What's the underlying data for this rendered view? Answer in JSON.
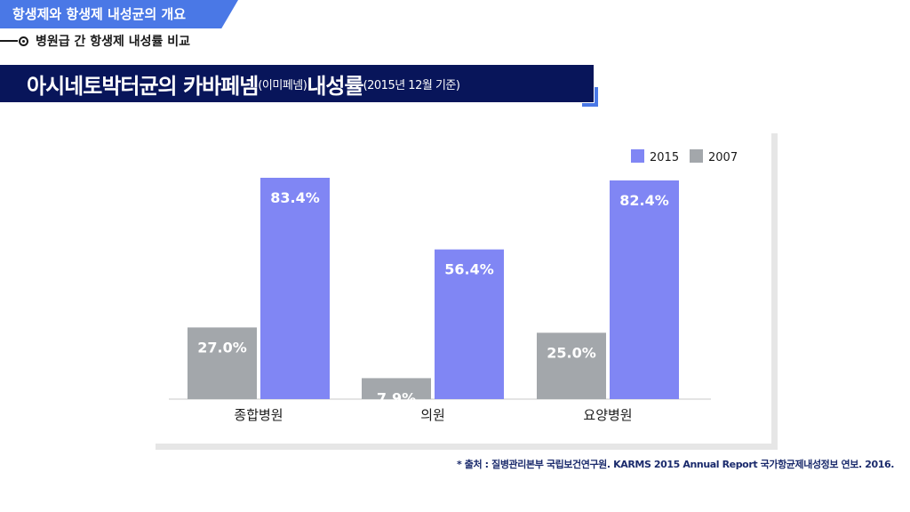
{
  "section_tag": "항생제와 항생제 내성균의 개요",
  "subtitle": "병원급 간 항생제 내성률 비교",
  "title": {
    "main": "아시네토박터균의 카바페넴",
    "paren": "(이미페넴)",
    "mid": " 내성률",
    "date_note": "(2015년 12월 기준)"
  },
  "colors": {
    "series_2015": "#8086f4",
    "series_2007": "#a3a7ab",
    "title_bg": "#08155a",
    "accent": "#4a78e6"
  },
  "chart_data": {
    "type": "bar",
    "categories": [
      "종합병원",
      "의원",
      "요양병원"
    ],
    "series": [
      {
        "name": "2007",
        "values": [
          27.0,
          7.9,
          25.0
        ],
        "labels": [
          "27.0%",
          "7.9%",
          "25.0%"
        ],
        "color": "#a3a7ab"
      },
      {
        "name": "2015",
        "values": [
          83.4,
          56.4,
          82.4
        ],
        "labels": [
          "83.4%",
          "56.4%",
          "82.4%"
        ],
        "color": "#8086f4"
      }
    ],
    "legend_order": [
      "2015",
      "2007"
    ],
    "legend_position": "top-right",
    "ylim": [
      0,
      100
    ],
    "grid": false,
    "title": "",
    "xlabel": "",
    "ylabel": ""
  },
  "source": "* 출처 : 질병관리본부 국립보건연구원. KARMS 2015 Annual Report 국가항균제내성정보 연보. 2016."
}
